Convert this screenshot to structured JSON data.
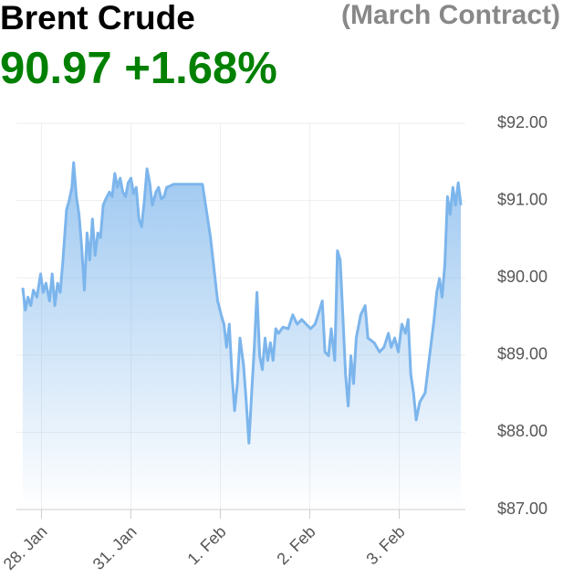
{
  "chart_data": {
    "type": "area",
    "title": "Brent Crude",
    "subtitle": "(March Contract)",
    "price": "90.97",
    "change": "+1.68%",
    "xlim": [
      -0.28,
      4.74
    ],
    "xticks": [
      {
        "value": 0,
        "label": "28. Jan"
      },
      {
        "value": 1,
        "label": "31. Jan"
      },
      {
        "value": 2,
        "label": "1. Feb"
      },
      {
        "value": 3,
        "label": "2. Feb"
      },
      {
        "value": 4,
        "label": "3. Feb"
      }
    ],
    "ylim": [
      87,
      92
    ],
    "yticks": [
      {
        "value": 87,
        "label": "$87.00"
      },
      {
        "value": 88,
        "label": "$88.00"
      },
      {
        "value": 89,
        "label": "$89.00"
      },
      {
        "value": 90,
        "label": "$90.00"
      },
      {
        "value": 91,
        "label": "$91.00"
      },
      {
        "value": 92,
        "label": "$92.00"
      }
    ],
    "grid": true,
    "series": [
      {
        "color": "#7cb5ec",
        "x": [
          -0.21,
          -0.18,
          -0.15,
          -0.12,
          -0.09,
          -0.05,
          -0.01,
          0.02,
          0.05,
          0.09,
          0.12,
          0.15,
          0.18,
          0.21,
          0.24,
          0.28,
          0.31,
          0.34,
          0.36,
          0.39,
          0.42,
          0.45,
          0.48,
          0.51,
          0.54,
          0.57,
          0.6,
          0.63,
          0.66,
          0.69,
          0.72,
          0.76,
          0.79,
          0.82,
          0.85,
          0.88,
          0.91,
          0.94,
          0.97,
          1.0,
          1.03,
          1.06,
          1.09,
          1.12,
          1.15,
          1.18,
          1.21,
          1.24,
          1.28,
          1.31,
          1.34,
          1.37,
          1.4,
          1.48,
          1.58,
          1.68,
          1.8,
          1.89,
          1.97,
          2.01,
          2.04,
          2.07,
          2.1,
          2.13,
          2.16,
          2.19,
          2.22,
          2.26,
          2.29,
          2.32,
          2.35,
          2.38,
          2.41,
          2.44,
          2.47,
          2.5,
          2.53,
          2.56,
          2.59,
          2.62,
          2.65,
          2.7,
          2.76,
          2.81,
          2.86,
          2.91,
          3.01,
          3.06,
          3.11,
          3.14,
          3.17,
          3.21,
          3.24,
          3.28,
          3.31,
          3.34,
          3.37,
          3.4,
          3.43,
          3.46,
          3.49,
          3.52,
          3.57,
          3.62,
          3.65,
          3.72,
          3.78,
          3.83,
          3.88,
          3.91,
          3.95,
          3.99,
          4.03,
          4.07,
          4.1,
          4.13,
          4.16,
          4.19,
          4.23,
          4.29,
          4.34,
          4.39,
          4.42,
          4.45,
          4.48,
          4.51,
          4.54,
          4.57,
          4.6,
          4.63,
          4.66,
          4.69
        ],
        "values": [
          89.87,
          89.58,
          89.75,
          89.64,
          89.84,
          89.75,
          90.05,
          89.81,
          89.93,
          89.7,
          90.05,
          89.64,
          89.93,
          89.81,
          90.23,
          90.88,
          91.0,
          91.17,
          91.49,
          91.05,
          90.82,
          90.4,
          89.84,
          90.58,
          90.23,
          90.76,
          90.29,
          90.58,
          90.52,
          90.94,
          91.02,
          91.11,
          91.05,
          91.35,
          91.17,
          91.29,
          91.11,
          91.05,
          91.23,
          91.29,
          91.09,
          91.17,
          90.76,
          90.66,
          91.0,
          91.41,
          91.23,
          90.94,
          91.11,
          91.17,
          91.02,
          91.05,
          91.17,
          91.21,
          91.21,
          91.21,
          91.21,
          90.52,
          89.7,
          89.52,
          89.4,
          89.1,
          89.4,
          88.75,
          88.28,
          88.63,
          89.22,
          88.87,
          88.39,
          87.86,
          88.51,
          89.1,
          89.81,
          88.99,
          88.81,
          89.22,
          88.93,
          89.16,
          88.93,
          89.34,
          89.28,
          89.36,
          89.34,
          89.52,
          89.4,
          89.46,
          89.34,
          89.4,
          89.58,
          89.7,
          89.04,
          88.99,
          89.34,
          88.93,
          90.35,
          90.23,
          89.52,
          88.75,
          88.34,
          88.99,
          88.63,
          89.22,
          89.52,
          89.64,
          89.22,
          89.16,
          89.04,
          89.1,
          89.28,
          89.1,
          89.22,
          89.04,
          89.4,
          89.28,
          89.46,
          88.75,
          88.51,
          88.16,
          88.39,
          88.51,
          88.99,
          89.46,
          89.81,
          89.99,
          89.75,
          90.17,
          91.05,
          90.82,
          91.17,
          90.94,
          91.23,
          90.94
        ]
      }
    ]
  }
}
